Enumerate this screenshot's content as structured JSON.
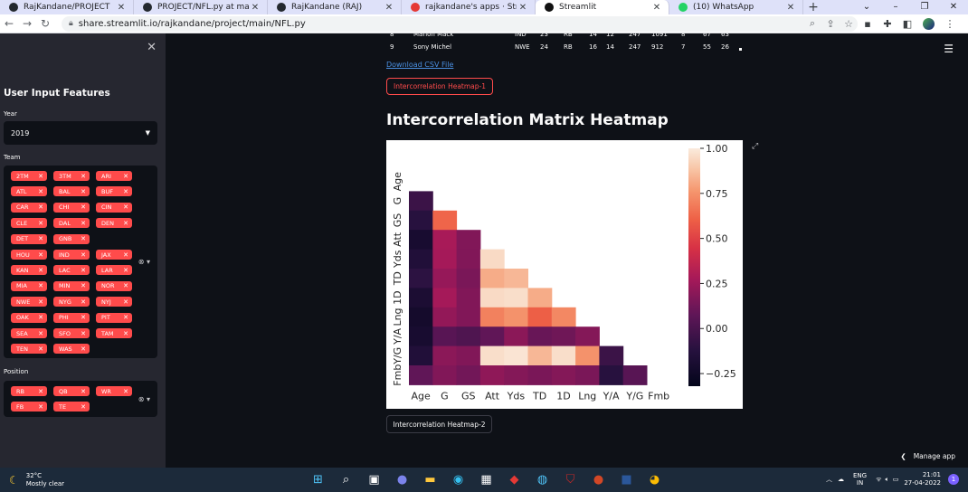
{
  "browser": {
    "tabs": [
      {
        "title": "RajKandane/PROJECT",
        "icon_color": "#24292f",
        "active": false
      },
      {
        "title": "PROJECT/NFL.py at main · R",
        "icon_color": "#24292f",
        "active": false
      },
      {
        "title": "RajKandane (RAJ)",
        "icon_color": "#24292f",
        "active": false
      },
      {
        "title": "rajkandane's apps · Streaml",
        "icon_color": "#e53935",
        "active": false
      },
      {
        "title": "Streamlit",
        "icon_color": "#111111",
        "active": true
      },
      {
        "title": "(10) WhatsApp",
        "icon_color": "#25d366",
        "active": false
      }
    ],
    "tab_close": "✕",
    "new_tab": "+",
    "url": "share.streamlit.io/rajkandane/project/main/NFL.py"
  },
  "sidebar": {
    "close_glyph": "✕",
    "title": "User Input Features",
    "year_label": "Year",
    "year_value": "2019",
    "team_label": "Team",
    "teams": [
      "2TM",
      "3TM",
      "ARI",
      "ATL",
      "BAL",
      "BUF",
      "CAR",
      "CHI",
      "CIN",
      "CLE",
      "DAL",
      "DEN",
      "DET",
      "GNB",
      "HOU",
      "IND",
      "JAX",
      "KAN",
      "LAC",
      "LAR",
      "MIA",
      "MIN",
      "NOR",
      "NWE",
      "NYG",
      "NYJ",
      "OAK",
      "PHI",
      "PIT",
      "SEA",
      "SFO",
      "TAM",
      "TEN",
      "WAS"
    ],
    "position_label": "Position",
    "positions": [
      "RB",
      "QB",
      "WR",
      "FB",
      "TE"
    ],
    "chip_close": "✕"
  },
  "main": {
    "df_rows": [
      [
        "8",
        "Marlon Mack",
        "IND",
        "23",
        "RB",
        "14",
        "12",
        "247",
        "1091",
        "8",
        "67",
        "63"
      ],
      [
        "9",
        "Sony Michel",
        "NWE",
        "24",
        "RB",
        "16",
        "14",
        "247",
        "912",
        "7",
        "55",
        "26"
      ]
    ],
    "download_link": "Download CSV File",
    "button1": "Intercorrelation Heatmap-1",
    "heading": "Intercorrelation Matrix Heatmap",
    "button2": "Intercorrelation Heatmap-2",
    "manage_app": "Manage app"
  },
  "chart_data": {
    "type": "heatmap",
    "labels": [
      "Age",
      "G",
      "GS",
      "Att",
      "Yds",
      "TD",
      "1D",
      "Lng",
      "Y/A",
      "Y/G",
      "Fmb"
    ],
    "colorbar_ticks": [
      "1.00",
      "0.75",
      "0.50",
      "0.25",
      "0.00",
      "−0.25"
    ],
    "colorbar_range": [
      -0.32,
      1.0
    ],
    "colormap": "rocket",
    "mask": "upper triangle including diagonal",
    "matrix_lower": [
      [],
      [
        -0.05
      ],
      [
        -0.12,
        0.62
      ],
      [
        -0.2,
        0.28,
        0.17
      ],
      [
        -0.15,
        0.27,
        0.17,
        0.95
      ],
      [
        -0.1,
        0.23,
        0.15,
        0.82,
        0.85
      ],
      [
        -0.18,
        0.27,
        0.17,
        0.95,
        0.96,
        0.82
      ],
      [
        -0.22,
        0.22,
        0.17,
        0.7,
        0.75,
        0.6,
        0.72
      ],
      [
        -0.2,
        0.05,
        0.02,
        0.08,
        0.2,
        0.1,
        0.12,
        0.18
      ],
      [
        -0.15,
        0.2,
        0.17,
        0.96,
        0.98,
        0.85,
        0.96,
        0.75,
        -0.05
      ],
      [
        0.08,
        0.17,
        0.13,
        0.21,
        0.18,
        0.15,
        0.18,
        0.15,
        -0.12,
        0.05
      ]
    ]
  },
  "taskbar": {
    "temperature": "32°C",
    "weather": "Mostly clear",
    "lang1": "ENG",
    "lang2": "IN",
    "time": "21:01",
    "date": "27-04-2022",
    "notifications": "1"
  }
}
